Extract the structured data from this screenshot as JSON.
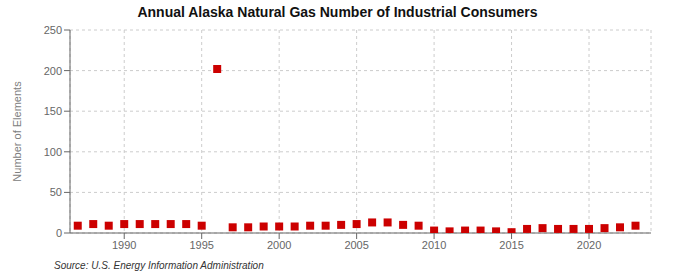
{
  "chart_data": {
    "type": "scatter",
    "title": "Annual Alaska Natural Gas Number of Industrial Consumers",
    "y_label": "Number of Elements",
    "annotation": "Source: U.S. Energy Information Administration",
    "x": [
      1987,
      1988,
      1989,
      1990,
      1991,
      1992,
      1993,
      1994,
      1995,
      1996,
      1997,
      1998,
      1999,
      2000,
      2001,
      2002,
      2003,
      2004,
      2005,
      2006,
      2007,
      2008,
      2009,
      2010,
      2011,
      2012,
      2013,
      2014,
      2015,
      2016,
      2017,
      2018,
      2019,
      2020,
      2021,
      2022,
      2023
    ],
    "values": [
      9,
      11,
      9,
      11,
      11,
      11,
      11,
      11,
      9,
      202,
      7,
      7,
      8,
      8,
      8,
      9,
      9,
      10,
      11,
      13,
      13,
      10,
      9,
      3,
      2,
      3,
      3,
      2,
      1,
      5,
      6,
      5,
      5,
      5,
      6,
      7,
      9
    ],
    "color": "#cc0000",
    "marker": "square",
    "xlim": [
      1986.5,
      2024
    ],
    "xticks": [
      1990,
      1995,
      2000,
      2005,
      2010,
      2015,
      2020
    ],
    "ylim": [
      0,
      250
    ],
    "yticks": [
      0,
      50,
      100,
      150,
      200,
      250
    ],
    "grid": true
  }
}
